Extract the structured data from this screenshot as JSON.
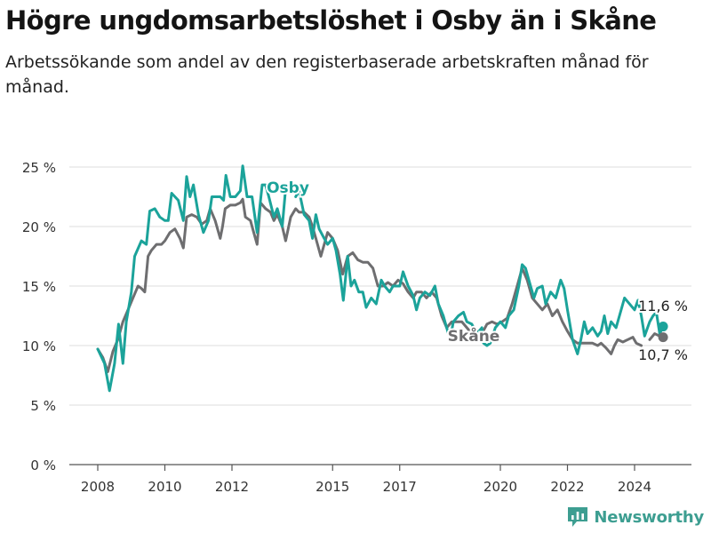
{
  "title": "Högre ungdomsarbetslöshet i Osby än i Skåne",
  "subtitle": "Arbetssökande som andel av den registerbaserade arbetskraften månad för månad.",
  "brand": {
    "name": "Newsworthy",
    "logo_icon": "newsworthy-logo-icon"
  },
  "chart_data": {
    "type": "line",
    "xlim": [
      2008,
      2025.4
    ],
    "ylim": [
      0,
      25
    ],
    "x_ticks": [
      2008,
      2010,
      2012,
      2015,
      2017,
      2020,
      2022,
      2024
    ],
    "y_ticks": [
      0,
      5,
      10,
      15,
      20,
      25
    ],
    "y_tick_labels": [
      "0 %",
      "5 %",
      "10 %",
      "15 %",
      "20 %",
      "25 %"
    ],
    "grid": "horizontal",
    "series": [
      {
        "name": "Osby",
        "color": "#1ba39a",
        "end_label": "11,6 %",
        "end_value": 11.6,
        "points": [
          [
            2008.0,
            9.7
          ],
          [
            2008.2,
            8.5
          ],
          [
            2008.35,
            6.2
          ],
          [
            2008.5,
            8.5
          ],
          [
            2008.62,
            11.8
          ],
          [
            2008.75,
            8.5
          ],
          [
            2008.85,
            12.0
          ],
          [
            2009.0,
            14.5
          ],
          [
            2009.1,
            17.5
          ],
          [
            2009.3,
            18.8
          ],
          [
            2009.45,
            18.5
          ],
          [
            2009.55,
            21.3
          ],
          [
            2009.7,
            21.5
          ],
          [
            2009.85,
            20.8
          ],
          [
            2010.0,
            20.5
          ],
          [
            2010.1,
            20.5
          ],
          [
            2010.2,
            22.8
          ],
          [
            2010.4,
            22.2
          ],
          [
            2010.55,
            20.5
          ],
          [
            2010.65,
            24.2
          ],
          [
            2010.75,
            22.5
          ],
          [
            2010.85,
            23.5
          ],
          [
            2011.0,
            21.0
          ],
          [
            2011.15,
            19.5
          ],
          [
            2011.3,
            20.5
          ],
          [
            2011.4,
            22.5
          ],
          [
            2011.5,
            22.5
          ],
          [
            2011.65,
            22.5
          ],
          [
            2011.75,
            22.2
          ],
          [
            2011.82,
            24.3
          ],
          [
            2011.95,
            22.5
          ],
          [
            2012.1,
            22.5
          ],
          [
            2012.25,
            23.0
          ],
          [
            2012.32,
            25.1
          ],
          [
            2012.45,
            22.5
          ],
          [
            2012.6,
            22.5
          ],
          [
            2012.75,
            19.5
          ],
          [
            2012.9,
            23.5
          ],
          [
            2013.0,
            23.5
          ],
          [
            2013.1,
            22.5
          ],
          [
            2013.25,
            20.8
          ],
          [
            2013.35,
            21.5
          ],
          [
            2013.5,
            20.0
          ],
          [
            2013.6,
            23.2
          ]
        ],
        "points_b": [
          [
            2013.9,
            22.5
          ],
          [
            2014.0,
            23.0
          ],
          [
            2014.15,
            21.0
          ],
          [
            2014.3,
            20.5
          ],
          [
            2014.4,
            19.0
          ],
          [
            2014.5,
            21.0
          ],
          [
            2014.6,
            19.8
          ],
          [
            2014.75,
            19.0
          ],
          [
            2014.85,
            18.5
          ],
          [
            2015.0,
            19.0
          ],
          [
            2015.1,
            18.0
          ],
          [
            2015.22,
            16.0
          ],
          [
            2015.32,
            13.8
          ],
          [
            2015.45,
            17.5
          ],
          [
            2015.55,
            15.0
          ],
          [
            2015.65,
            15.5
          ],
          [
            2015.78,
            14.5
          ],
          [
            2015.9,
            14.5
          ],
          [
            2016.0,
            13.2
          ],
          [
            2016.15,
            14.0
          ],
          [
            2016.3,
            13.5
          ],
          [
            2016.45,
            15.5
          ],
          [
            2016.55,
            15.0
          ],
          [
            2016.7,
            14.5
          ],
          [
            2016.8,
            15.0
          ],
          [
            2017.0,
            15.0
          ],
          [
            2017.1,
            16.2
          ],
          [
            2017.25,
            15.0
          ],
          [
            2017.4,
            14.2
          ],
          [
            2017.5,
            13.0
          ],
          [
            2017.6,
            14.0
          ],
          [
            2017.75,
            14.5
          ],
          [
            2017.9,
            14.2
          ],
          [
            2018.05,
            15.0
          ],
          [
            2018.15,
            13.5
          ],
          [
            2018.3,
            12.5
          ],
          [
            2018.45,
            11.0
          ],
          [
            2018.5,
            10.5
          ],
          [
            2018.6,
            12.0
          ],
          [
            2018.75,
            12.5
          ],
          [
            2018.9,
            12.8
          ],
          [
            2019.0,
            12.0
          ],
          [
            2019.15,
            11.8
          ],
          [
            2019.3,
            11.0
          ],
          [
            2019.45,
            11.5
          ],
          [
            2019.5,
            10.2
          ],
          [
            2019.6,
            10.0
          ],
          [
            2019.7,
            10.2
          ],
          [
            2019.85,
            11.5
          ],
          [
            2020.0,
            12.0
          ],
          [
            2020.15,
            11.5
          ],
          [
            2020.25,
            12.5
          ],
          [
            2020.4,
            13.0
          ],
          [
            2020.55,
            15.0
          ],
          [
            2020.65,
            16.8
          ],
          [
            2020.75,
            16.5
          ],
          [
            2020.9,
            15.0
          ],
          [
            2021.0,
            14.0
          ],
          [
            2021.1,
            14.8
          ],
          [
            2021.25,
            15.0
          ],
          [
            2021.35,
            13.5
          ],
          [
            2021.5,
            14.5
          ],
          [
            2021.65,
            14.0
          ],
          [
            2021.8,
            15.5
          ],
          [
            2021.9,
            14.8
          ],
          [
            2022.0,
            13.0
          ],
          [
            2022.15,
            10.5
          ],
          [
            2022.3,
            9.3
          ],
          [
            2022.4,
            10.5
          ],
          [
            2022.5,
            12.0
          ],
          [
            2022.6,
            11.0
          ],
          [
            2022.75,
            11.5
          ],
          [
            2022.9,
            10.8
          ],
          [
            2023.0,
            11.2
          ],
          [
            2023.1,
            12.5
          ],
          [
            2023.2,
            11.0
          ],
          [
            2023.3,
            12.0
          ],
          [
            2023.45,
            11.5
          ],
          [
            2023.55,
            12.5
          ],
          [
            2023.7,
            14.0
          ],
          [
            2023.85,
            13.5
          ],
          [
            2024.0,
            13.0
          ],
          [
            2024.1,
            13.8
          ],
          [
            2024.2,
            12.5
          ],
          [
            2024.3,
            10.8
          ],
          [
            2024.45,
            12.0
          ],
          [
            2024.55,
            12.5
          ],
          [
            2024.65,
            12.8
          ],
          [
            2024.75,
            11.0
          ],
          [
            2024.85,
            11.6
          ]
        ]
      },
      {
        "name": "Skåne",
        "color": "#6e6e70",
        "end_label": "10,7 %",
        "end_value": 10.7,
        "points": [
          [
            2008.0,
            9.7
          ],
          [
            2008.15,
            9.0
          ],
          [
            2008.3,
            7.8
          ],
          [
            2008.45,
            9.5
          ],
          [
            2008.6,
            10.5
          ],
          [
            2008.75,
            12.0
          ],
          [
            2008.9,
            13.0
          ],
          [
            2009.05,
            14.0
          ],
          [
            2009.2,
            15.0
          ],
          [
            2009.3,
            14.8
          ],
          [
            2009.4,
            14.5
          ],
          [
            2009.5,
            17.5
          ],
          [
            2009.6,
            18.0
          ],
          [
            2009.75,
            18.5
          ],
          [
            2009.9,
            18.5
          ],
          [
            2010.0,
            18.8
          ],
          [
            2010.15,
            19.5
          ],
          [
            2010.3,
            19.8
          ],
          [
            2010.45,
            19.0
          ],
          [
            2010.55,
            18.2
          ],
          [
            2010.65,
            20.8
          ],
          [
            2010.8,
            21.0
          ],
          [
            2010.95,
            20.8
          ],
          [
            2011.1,
            20.2
          ],
          [
            2011.25,
            20.5
          ],
          [
            2011.35,
            21.5
          ],
          [
            2011.5,
            20.5
          ],
          [
            2011.65,
            19.0
          ],
          [
            2011.72,
            20.0
          ],
          [
            2011.8,
            21.5
          ],
          [
            2011.95,
            21.8
          ],
          [
            2012.1,
            21.8
          ],
          [
            2012.25,
            22.0
          ],
          [
            2012.32,
            22.3
          ],
          [
            2012.4,
            20.8
          ],
          [
            2012.55,
            20.5
          ],
          [
            2012.65,
            19.5
          ],
          [
            2012.75,
            18.5
          ],
          [
            2012.85,
            22.0
          ],
          [
            2013.0,
            21.5
          ],
          [
            2013.15,
            21.2
          ],
          [
            2013.25,
            20.5
          ],
          [
            2013.35,
            21.0
          ],
          [
            2013.5,
            20.0
          ],
          [
            2013.6,
            18.8
          ],
          [
            2013.75,
            20.8
          ],
          [
            2013.9,
            21.5
          ],
          [
            2014.0,
            21.2
          ],
          [
            2014.15,
            21.2
          ],
          [
            2014.3,
            20.8
          ],
          [
            2014.4,
            20.0
          ],
          [
            2014.5,
            19.0
          ],
          [
            2014.65,
            17.5
          ],
          [
            2014.75,
            18.5
          ],
          [
            2014.85,
            19.5
          ],
          [
            2015.0,
            19.0
          ],
          [
            2015.15,
            18.0
          ],
          [
            2015.3,
            16.0
          ],
          [
            2015.45,
            17.5
          ],
          [
            2015.6,
            17.8
          ],
          [
            2015.75,
            17.2
          ],
          [
            2015.9,
            17.0
          ],
          [
            2016.05,
            17.0
          ],
          [
            2016.2,
            16.5
          ],
          [
            2016.35,
            15.0
          ],
          [
            2016.5,
            15.0
          ],
          [
            2016.65,
            15.3
          ],
          [
            2016.8,
            15.0
          ],
          [
            2016.95,
            15.5
          ],
          [
            2017.1,
            15.2
          ],
          [
            2017.25,
            14.5
          ],
          [
            2017.4,
            14.0
          ],
          [
            2017.5,
            14.5
          ],
          [
            2017.65,
            14.5
          ],
          [
            2017.8,
            14.0
          ],
          [
            2017.95,
            14.5
          ],
          [
            2018.1,
            14.0
          ],
          [
            2018.25,
            12.5
          ],
          [
            2018.4,
            11.5
          ],
          [
            2018.55,
            12.0
          ],
          [
            2018.7,
            12.0
          ],
          [
            2018.85,
            12.0
          ],
          [
            2019.0,
            11.5
          ],
          [
            2019.15,
            11.0
          ],
          [
            2019.3,
            11.2
          ],
          [
            2019.45,
            11.0
          ],
          [
            2019.6,
            11.8
          ],
          [
            2019.75,
            12.0
          ],
          [
            2019.9,
            11.8
          ],
          [
            2020.05,
            12.0
          ],
          [
            2020.2,
            12.3
          ],
          [
            2020.35,
            13.5
          ],
          [
            2020.5,
            15.0
          ],
          [
            2020.65,
            16.5
          ],
          [
            2020.8,
            15.5
          ],
          [
            2020.95,
            14.0
          ],
          [
            2021.1,
            13.5
          ],
          [
            2021.25,
            13.0
          ],
          [
            2021.4,
            13.5
          ],
          [
            2021.55,
            12.5
          ],
          [
            2021.7,
            13.0
          ],
          [
            2021.85,
            12.0
          ],
          [
            2022.0,
            11.2
          ],
          [
            2022.15,
            10.5
          ],
          [
            2022.3,
            10.2
          ],
          [
            2022.45,
            10.2
          ],
          [
            2022.6,
            10.2
          ],
          [
            2022.75,
            10.2
          ],
          [
            2022.9,
            10.0
          ],
          [
            2023.0,
            10.2
          ],
          [
            2023.15,
            9.8
          ],
          [
            2023.3,
            9.3
          ],
          [
            2023.4,
            10.0
          ],
          [
            2023.5,
            10.5
          ],
          [
            2023.65,
            10.3
          ],
          [
            2023.8,
            10.5
          ],
          [
            2023.95,
            10.7
          ],
          [
            2024.05,
            10.2
          ],
          [
            2024.2,
            10.0
          ]
        ],
        "points_b": [
          [
            2024.45,
            10.5
          ],
          [
            2024.6,
            11.0
          ],
          [
            2024.75,
            10.8
          ],
          [
            2024.85,
            10.7
          ]
        ]
      }
    ]
  }
}
